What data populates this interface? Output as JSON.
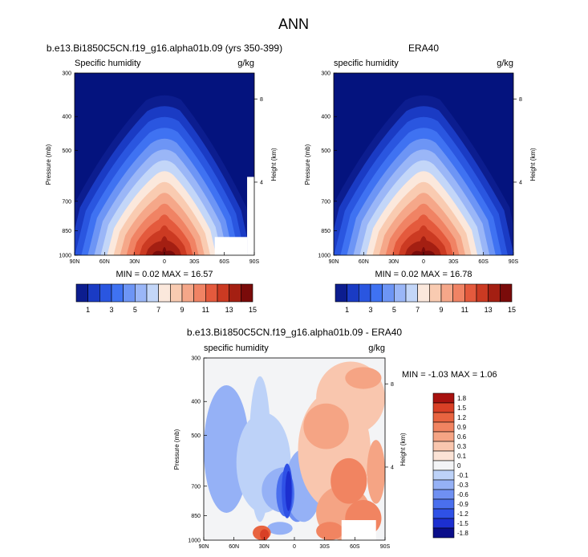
{
  "figure": {
    "title": "ANN"
  },
  "colors": {
    "abs_levels": [
      "#0c1d8f",
      "#1a3bc4",
      "#2a56e0",
      "#3f72f2",
      "#6d95f5",
      "#9ab6f7",
      "#c3d6f8",
      "#fbe8dc",
      "#f9cbb1",
      "#f5a789",
      "#f08364",
      "#e45a3d",
      "#cb3a22",
      "#a41f12",
      "#7a0b0a"
    ],
    "abs_top": "#04137e",
    "diff_levels": [
      "#0a0e8a",
      "#1c2fd0",
      "#2f51e6",
      "#4a6fee",
      "#6f90f2",
      "#95b1f6",
      "#bdd2f8",
      "#f3f4f6",
      "#fbe3d6",
      "#f9c6ae",
      "#f5a484",
      "#f18461",
      "#e86440",
      "#d94026",
      "#a8120f"
    ]
  },
  "chart_data": [
    {
      "type": "heatmap",
      "title": "b.e13.Bi1850C5CN.f19_g16.alpha01b.09 (yrs 350-399)",
      "left_label": "Specific humidity",
      "right_label": "g/kg",
      "ylabel": "Pressure (mb)",
      "y2label": "Height (km)",
      "x_ticks": [
        "90N",
        "60N",
        "30N",
        "0",
        "30S",
        "60S",
        "90S"
      ],
      "x_values": [
        90,
        60,
        30,
        0,
        -30,
        -60,
        -90
      ],
      "y_ticks": [
        "300",
        "400",
        "500",
        "700",
        "850",
        "1000"
      ],
      "y_values": [
        300,
        400,
        500,
        700,
        850,
        1000
      ],
      "y2_ticks": [
        "8",
        "4"
      ],
      "stats": "MIN =  0.02  MAX = 16.57",
      "min": 0.02,
      "max": 16.57,
      "colorbar_labels": [
        "1",
        "3",
        "5",
        "7",
        "9",
        "11",
        "13",
        "15"
      ],
      "colorbar_levels": [
        0.5,
        1,
        2,
        3,
        4,
        5,
        6,
        7,
        8,
        9,
        10,
        11,
        12,
        13,
        14,
        15
      ]
    },
    {
      "type": "heatmap",
      "title": "ERA40",
      "left_label": "specific humidity",
      "right_label": "g/kg",
      "ylabel": "Pressure (mb)",
      "y2label": "Height (km)",
      "x_ticks": [
        "90N",
        "60N",
        "30N",
        "0",
        "30S",
        "60S",
        "90S"
      ],
      "x_values": [
        90,
        60,
        30,
        0,
        -30,
        -60,
        -90
      ],
      "y_ticks": [
        "300",
        "400",
        "500",
        "700",
        "850",
        "1000"
      ],
      "y_values": [
        300,
        400,
        500,
        700,
        850,
        1000
      ],
      "y2_ticks": [
        "8",
        "4"
      ],
      "stats": "MIN =  0.02  MAX = 16.78",
      "min": 0.02,
      "max": 16.78,
      "colorbar_labels": [
        "1",
        "3",
        "5",
        "7",
        "9",
        "11",
        "13",
        "15"
      ],
      "colorbar_levels": [
        0.5,
        1,
        2,
        3,
        4,
        5,
        6,
        7,
        8,
        9,
        10,
        11,
        12,
        13,
        14,
        15
      ]
    },
    {
      "type": "heatmap",
      "title": "b.e13.Bi1850C5CN.f19_g16.alpha01b.09 - ERA40",
      "left_label": "specific humidity",
      "right_label": "g/kg",
      "ylabel": "Pressure (mb)",
      "y2label": "Height (km)",
      "x_ticks": [
        "90N",
        "60N",
        "30N",
        "0",
        "30S",
        "60S",
        "90S"
      ],
      "x_values": [
        90,
        60,
        30,
        0,
        -30,
        -60,
        -90
      ],
      "y_ticks": [
        "300",
        "400",
        "500",
        "700",
        "850",
        "1000"
      ],
      "y_values": [
        300,
        400,
        500,
        700,
        850,
        1000
      ],
      "y2_ticks": [
        "8",
        "4"
      ],
      "stats": "MIN = -1.03  MAX =  1.06",
      "min": -1.03,
      "max": 1.06,
      "colorbar_labels": [
        "1.8",
        "1.5",
        "1.2",
        "0.9",
        "0.6",
        "0.3",
        "0.1",
        "0",
        "-0.1",
        "-0.3",
        "-0.6",
        "-0.9",
        "-1.2",
        "-1.5",
        "-1.8"
      ],
      "colorbar_levels": [
        -1.8,
        -1.5,
        -1.2,
        -0.9,
        -0.6,
        -0.3,
        -0.1,
        0,
        0.1,
        0.3,
        0.6,
        0.9,
        1.2,
        1.5,
        1.8
      ]
    }
  ]
}
